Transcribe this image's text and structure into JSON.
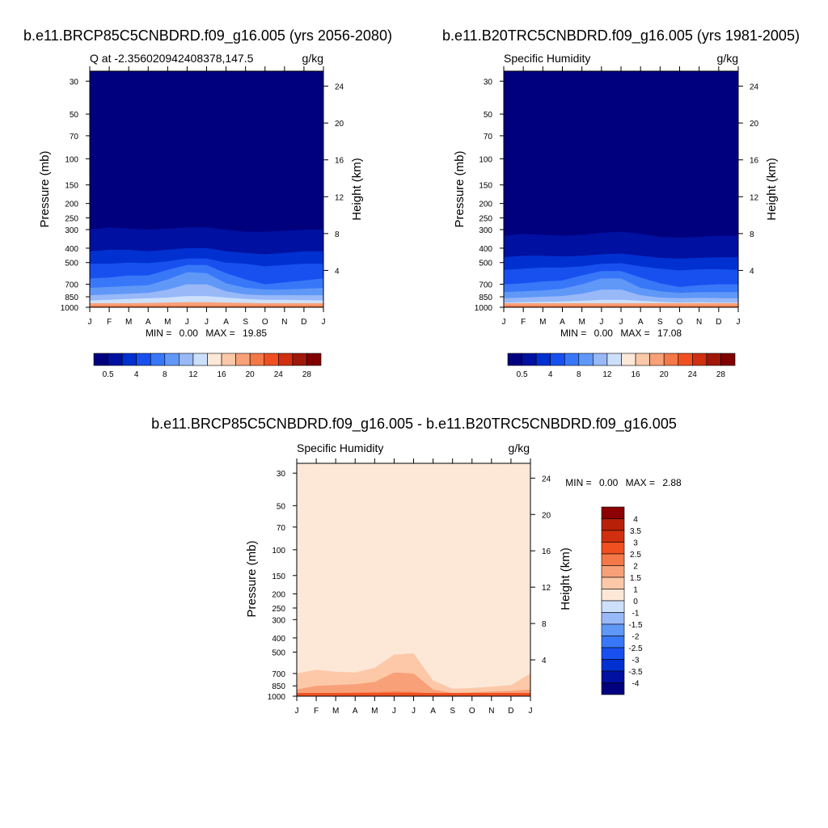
{
  "colors": {
    "full_palette": [
      "#00007f",
      "#0010a0",
      "#0030d0",
      "#1850f0",
      "#3878f8",
      "#6098f8",
      "#98b8f8",
      "#cce0fc",
      "#fde8d8",
      "#fcc8a8",
      "#f8a078",
      "#f47848",
      "#f05020",
      "#d03010",
      "#a01808",
      "#800000"
    ],
    "diff_palette": [
      "#00007f",
      "#0010a0",
      "#0030d0",
      "#1850f0",
      "#3878f8",
      "#6098f8",
      "#98b8f8",
      "#cce0fc",
      "#fde8d8",
      "#fcc8a8",
      "#f8a078",
      "#f47848",
      "#f05020",
      "#d03010",
      "#b82008",
      "#8c0000"
    ]
  },
  "chart_data": [
    {
      "type": "heatmap",
      "title": "b.e11.BRCP85C5CNBDRD.f09_g16.005 (yrs 2056-2080)",
      "left_label": "Q at -2.356020942408378,147.5",
      "right_label": "g/kg",
      "ylabel": "Pressure (mb)",
      "y2label": "Height (km)",
      "x_ticks": [
        "J",
        "F",
        "M",
        "A",
        "M",
        "J",
        "J",
        "A",
        "S",
        "O",
        "N",
        "D",
        "J"
      ],
      "y_ticks": [
        "30",
        "50",
        "70",
        "100",
        "150",
        "200",
        "250",
        "300",
        "400",
        "500",
        "700",
        "850",
        "1000"
      ],
      "y_tick_values": [
        30,
        50,
        70,
        100,
        150,
        200,
        250,
        300,
        400,
        500,
        700,
        850,
        1000
      ],
      "y2_ticks": [
        "24",
        "20",
        "16",
        "12",
        "8",
        "4"
      ],
      "y2_tick_values": [
        24,
        20,
        16,
        12,
        8,
        4
      ],
      "min_label": "MIN =",
      "min_value": "0.00",
      "max_label": "MAX =",
      "max_value": "19.85",
      "colorbar_labels": [
        "0.5",
        "4",
        "8",
        "12",
        "16",
        "20",
        "24",
        "28"
      ],
      "months": [
        "J",
        "F",
        "M",
        "A",
        "M",
        "J",
        "J",
        "A",
        "S",
        "O",
        "N",
        "D",
        "J"
      ],
      "contour_levels": [
        0.5,
        1,
        2,
        3,
        4,
        6,
        8,
        12
      ],
      "contour_pressures_mb": [
        [
          300,
          420,
          510,
          640,
          740,
          830,
          900,
          950
        ],
        [
          290,
          410,
          510,
          630,
          730,
          820,
          890,
          945
        ],
        [
          295,
          410,
          500,
          610,
          720,
          810,
          880,
          940
        ],
        [
          300,
          420,
          505,
          610,
          710,
          800,
          870,
          935
        ],
        [
          295,
          410,
          490,
          560,
          650,
          760,
          860,
          930
        ],
        [
          290,
          400,
          470,
          520,
          580,
          700,
          840,
          925
        ],
        [
          290,
          400,
          470,
          520,
          590,
          700,
          840,
          925
        ],
        [
          300,
          420,
          500,
          590,
          690,
          780,
          860,
          930
        ],
        [
          310,
          430,
          510,
          650,
          740,
          820,
          880,
          935
        ],
        [
          310,
          440,
          530,
          700,
          760,
          830,
          890,
          940
        ],
        [
          305,
          430,
          520,
          680,
          760,
          830,
          890,
          940
        ],
        [
          300,
          420,
          510,
          660,
          750,
          830,
          895,
          945
        ],
        [
          300,
          420,
          510,
          640,
          740,
          830,
          900,
          950
        ]
      ]
    },
    {
      "type": "heatmap",
      "title": "b.e11.B20TRC5CNBDRD.f09_g16.005 (yrs 1981-2005)",
      "left_label": "Specific Humidity",
      "right_label": "g/kg",
      "ylabel": "Pressure (mb)",
      "y2label": "Height (km)",
      "x_ticks": [
        "J",
        "F",
        "M",
        "A",
        "M",
        "J",
        "J",
        "A",
        "S",
        "O",
        "N",
        "D",
        "J"
      ],
      "y_ticks": [
        "30",
        "50",
        "70",
        "100",
        "150",
        "200",
        "250",
        "300",
        "400",
        "500",
        "700",
        "850",
        "1000"
      ],
      "y_tick_values": [
        30,
        50,
        70,
        100,
        150,
        200,
        250,
        300,
        400,
        500,
        700,
        850,
        1000
      ],
      "y2_ticks": [
        "24",
        "20",
        "16",
        "12",
        "8",
        "4"
      ],
      "y2_tick_values": [
        24,
        20,
        16,
        12,
        8,
        4
      ],
      "min_label": "MIN =",
      "min_value": "0.00",
      "max_label": "MAX =",
      "max_value": "17.08",
      "colorbar_labels": [
        "0.5",
        "4",
        "8",
        "12",
        "16",
        "20",
        "24",
        "28"
      ],
      "months": [
        "J",
        "F",
        "M",
        "A",
        "M",
        "J",
        "J",
        "A",
        "S",
        "O",
        "N",
        "D",
        "J"
      ],
      "contour_levels": [
        0.5,
        1,
        2,
        3,
        4,
        6,
        8,
        12
      ],
      "contour_pressures_mb": [
        [
          330,
          460,
          560,
          700,
          790,
          870,
          930,
          965
        ],
        [
          320,
          450,
          550,
          690,
          780,
          860,
          925,
          962
        ],
        [
          325,
          450,
          540,
          670,
          770,
          850,
          920,
          960
        ],
        [
          330,
          455,
          540,
          660,
          750,
          840,
          915,
          958
        ],
        [
          325,
          450,
          530,
          610,
          700,
          810,
          905,
          955
        ],
        [
          315,
          440,
          510,
          570,
          640,
          760,
          890,
          952
        ],
        [
          310,
          435,
          505,
          570,
          640,
          760,
          890,
          952
        ],
        [
          320,
          450,
          530,
          630,
          740,
          830,
          905,
          955
        ],
        [
          335,
          465,
          550,
          690,
          780,
          860,
          920,
          960
        ],
        [
          340,
          470,
          565,
          730,
          800,
          870,
          930,
          964
        ],
        [
          335,
          465,
          555,
          710,
          790,
          865,
          925,
          962
        ],
        [
          330,
          460,
          555,
          700,
          790,
          868,
          930,
          964
        ],
        [
          330,
          460,
          560,
          700,
          790,
          870,
          930,
          965
        ]
      ]
    },
    {
      "type": "heatmap",
      "title": "b.e11.BRCP85C5CNBDRD.f09_g16.005 - b.e11.B20TRC5CNBDRD.f09_g16.005",
      "left_label": "Specific Humidity",
      "right_label": "g/kg",
      "ylabel": "Pressure (mb)",
      "y2label": "Height (km)",
      "x_ticks": [
        "J",
        "F",
        "M",
        "A",
        "M",
        "J",
        "J",
        "A",
        "S",
        "O",
        "N",
        "D",
        "J"
      ],
      "y_ticks": [
        "30",
        "50",
        "70",
        "100",
        "150",
        "200",
        "250",
        "300",
        "400",
        "500",
        "700",
        "850",
        "1000"
      ],
      "y_tick_values": [
        30,
        50,
        70,
        100,
        150,
        200,
        250,
        300,
        400,
        500,
        700,
        850,
        1000
      ],
      "y2_ticks": [
        "24",
        "20",
        "16",
        "12",
        "8",
        "4"
      ],
      "y2_tick_values": [
        24,
        20,
        16,
        12,
        8,
        4
      ],
      "min_label": "MIN =",
      "min_value": "0.00",
      "max_label": "MAX =",
      "max_value": "2.88",
      "colorbar_labels": [
        "4",
        "3.5",
        "3",
        "2.5",
        "2",
        "1.5",
        "1",
        "0",
        "-1",
        "-1.5",
        "-2",
        "-2.5",
        "-3",
        "-3.5",
        "-4"
      ],
      "months": [
        "J",
        "F",
        "M",
        "A",
        "M",
        "J",
        "J",
        "A",
        "S",
        "O",
        "N",
        "D",
        "J"
      ],
      "contour_levels": [
        1,
        1.5,
        2
      ],
      "contour_pressures_mb": [
        [
          700,
          900,
          970
        ],
        [
          660,
          850,
          960
        ],
        [
          680,
          840,
          950
        ],
        [
          690,
          830,
          945
        ],
        [
          640,
          800,
          940
        ],
        [
          520,
          690,
          930
        ],
        [
          510,
          700,
          935
        ],
        [
          780,
          900,
          960
        ],
        [
          890,
          950,
          975
        ],
        [
          880,
          940,
          972
        ],
        [
          860,
          930,
          970
        ],
        [
          840,
          920,
          968
        ],
        [
          700,
          900,
          970
        ]
      ]
    }
  ]
}
